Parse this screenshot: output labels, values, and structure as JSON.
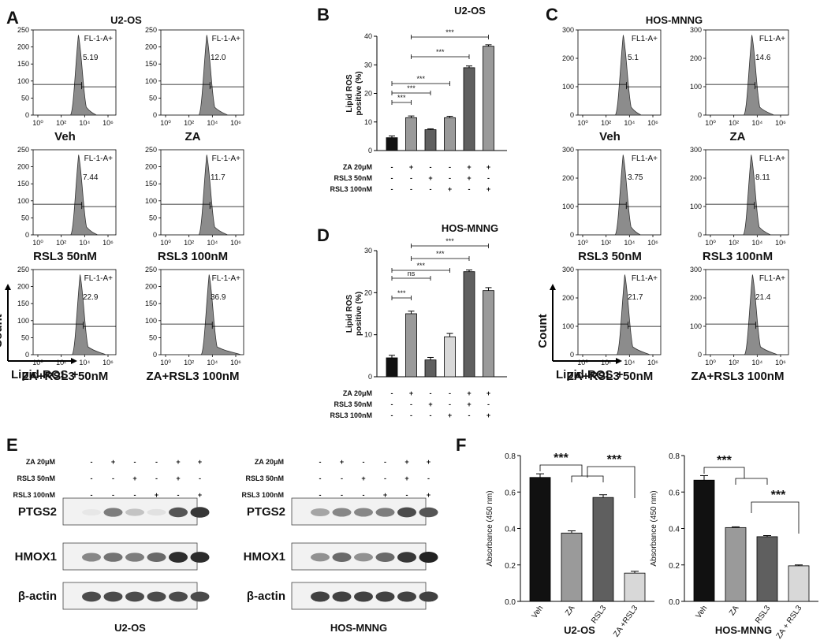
{
  "panel_labels": {
    "A": "A",
    "B": "B",
    "C": "C",
    "D": "D",
    "E": "E",
    "F": "F"
  },
  "colors": {
    "black": "#111111",
    "bar_dark": "#5f5f5f",
    "bar_mid": "#9a9a9a",
    "bar_light": "#d8d8d8",
    "histogram": "#8c8c8c"
  },
  "chart_data": [
    {
      "type": "histogram",
      "id": "A",
      "title": "U2-OS",
      "ylabel": "Count",
      "xlabel": "Lipid ROS +",
      "ylim": [
        0,
        250
      ],
      "yticks": [
        "0",
        "50",
        "100",
        "150",
        "200",
        "250"
      ],
      "xticks": [
        "10⁰",
        "10²",
        "10⁴",
        "10⁶"
      ],
      "gate_label": "FL-1-A+",
      "subplots": [
        {
          "condition": "Veh",
          "percent": "5.19"
        },
        {
          "condition": "ZA",
          "percent": "12.0"
        },
        {
          "condition": "RSL3 50nM",
          "percent": "7.44"
        },
        {
          "condition": "RSL3 100nM",
          "percent": "11.7"
        },
        {
          "condition": "ZA+RSL3 50nM",
          "percent": "22.9"
        },
        {
          "condition": "ZA+RSL3 100nM",
          "percent": "36.9"
        }
      ]
    },
    {
      "type": "bar",
      "id": "B",
      "title": "U2-OS",
      "ylabel": "Lipid ROS positive (%)",
      "ylim": [
        0,
        40
      ],
      "yticks": [
        "0",
        "10",
        "20",
        "30",
        "40"
      ],
      "values": [
        4.5,
        11.5,
        7.3,
        11.5,
        29,
        36.5
      ],
      "errors": [
        0.6,
        0.6,
        0.3,
        0.5,
        0.6,
        0.5
      ],
      "bar_colors": [
        "#111111",
        "#9a9a9a",
        "#5f5f5f",
        "#9a9a9a",
        "#5f5f5f",
        "#9a9a9a"
      ],
      "rows": [
        {
          "label": "ZA 20μM",
          "marks": [
            "-",
            "+",
            "-",
            "-",
            "+",
            "+"
          ]
        },
        {
          "label": "RSL3 50nM",
          "marks": [
            "-",
            "-",
            "+",
            "-",
            "+",
            "-"
          ]
        },
        {
          "label": "RSL3 100nM",
          "marks": [
            "-",
            "-",
            "-",
            "+",
            "-",
            "+"
          ]
        }
      ],
      "significance": [
        {
          "from": 0,
          "to": 1,
          "label": "***"
        },
        {
          "from": 0,
          "to": 2,
          "label": "***"
        },
        {
          "from": 0,
          "to": 3,
          "label": "***"
        },
        {
          "from": 1,
          "to": 4,
          "label": "***"
        },
        {
          "from": 1,
          "to": 5,
          "label": "***"
        }
      ]
    },
    {
      "type": "histogram",
      "id": "C",
      "title": "HOS-MNNG",
      "ylabel": "Count",
      "xlabel": "Lipid ROS +",
      "ylim": [
        0,
        300
      ],
      "yticks": [
        "0",
        "100",
        "200",
        "300"
      ],
      "xticks": [
        "10⁰",
        "10²",
        "10⁴",
        "10⁶"
      ],
      "gate_label": "FL1-A+",
      "subplots": [
        {
          "condition": "Veh",
          "percent": "5.1"
        },
        {
          "condition": "ZA",
          "percent": "14.6"
        },
        {
          "condition": "RSL3 50nM",
          "percent": "3.75"
        },
        {
          "condition": "RSL3 100nM",
          "percent": "8.11"
        },
        {
          "condition": "ZA+RSL3 50nM",
          "percent": "21.7"
        },
        {
          "condition": "ZA+RSL3 100nM",
          "percent": "21.4"
        }
      ]
    },
    {
      "type": "bar",
      "id": "D",
      "title": "HOS-MNNG",
      "ylabel": "Lipid ROS positive (%)",
      "ylim": [
        0,
        30
      ],
      "yticks": [
        "0",
        "10",
        "20",
        "30"
      ],
      "values": [
        4.5,
        15,
        4,
        9.5,
        25,
        20.5
      ],
      "errors": [
        0.6,
        0.6,
        0.6,
        0.8,
        0.4,
        0.7
      ],
      "bar_colors": [
        "#111111",
        "#9a9a9a",
        "#5f5f5f",
        "#d8d8d8",
        "#5f5f5f",
        "#9a9a9a"
      ],
      "rows": [
        {
          "label": "ZA 20μM",
          "marks": [
            "-",
            "+",
            "-",
            "-",
            "+",
            "+"
          ]
        },
        {
          "label": "RSL3 50nM",
          "marks": [
            "-",
            "-",
            "+",
            "-",
            "+",
            "-"
          ]
        },
        {
          "label": "RSL3 100nM",
          "marks": [
            "-",
            "-",
            "-",
            "+",
            "-",
            "+"
          ]
        }
      ],
      "significance": [
        {
          "from": 0,
          "to": 1,
          "label": "***"
        },
        {
          "from": 0,
          "to": 2,
          "label": "ns"
        },
        {
          "from": 0,
          "to": 3,
          "label": "***"
        },
        {
          "from": 1,
          "to": 4,
          "label": "***"
        },
        {
          "from": 1,
          "to": 5,
          "label": "***"
        }
      ]
    },
    {
      "type": "bar",
      "id": "F1",
      "title": "U2-OS",
      "ylabel": "Absorbance (450 nm)",
      "ylim": [
        0,
        0.8
      ],
      "yticks": [
        "0.0",
        "0.2",
        "0.4",
        "0.6",
        "0.8"
      ],
      "categories": [
        "Veh",
        "ZA",
        "RSL3",
        "ZA +RSL3"
      ],
      "values": [
        0.68,
        0.375,
        0.57,
        0.155
      ],
      "errors": [
        0.02,
        0.012,
        0.015,
        0.01
      ],
      "bar_colors": [
        "#111111",
        "#9a9a9a",
        "#5f5f5f",
        "#d8d8d8"
      ],
      "significance": [
        {
          "from": 0,
          "to": [
            1,
            2
          ],
          "label": "***"
        },
        {
          "from": [
            1,
            2
          ],
          "to": 3,
          "label": "***"
        }
      ]
    },
    {
      "type": "bar",
      "id": "F2",
      "title": "HOS-MNNG",
      "ylabel": "Absorbance (450 nm)",
      "ylim": [
        0,
        0.8
      ],
      "yticks": [
        "0.0",
        "0.2",
        "0.4",
        "0.6",
        "0.8"
      ],
      "categories": [
        "Veh",
        "ZA",
        "RSL3",
        "ZA + RSL3"
      ],
      "values": [
        0.665,
        0.405,
        0.355,
        0.195
      ],
      "errors": [
        0.025,
        0.004,
        0.006,
        0.005
      ],
      "bar_colors": [
        "#111111",
        "#9a9a9a",
        "#5f5f5f",
        "#d8d8d8"
      ],
      "significance": [
        {
          "from": 0,
          "to": [
            1,
            2
          ],
          "label": "***"
        },
        {
          "from": [
            1,
            2
          ],
          "to": 3,
          "label": "***"
        }
      ]
    }
  ],
  "western_blot": {
    "panel": "E",
    "rows": [
      {
        "label": "ZA 20μM",
        "marks": [
          "-",
          "+",
          "-",
          "-",
          "+",
          "+"
        ]
      },
      {
        "label": "RSL3 50nM",
        "marks": [
          "-",
          "-",
          "+",
          "-",
          "+",
          "-"
        ]
      },
      {
        "label": "RSL3 100nM",
        "marks": [
          "-",
          "-",
          "-",
          "+",
          "-",
          "+"
        ]
      }
    ],
    "cell_lines": [
      {
        "name": "U2-OS",
        "bands": [
          {
            "protein": "PTGS2",
            "intensity": [
              0.02,
              0.55,
              0.2,
              0.05,
              0.75,
              0.9
            ]
          },
          {
            "protein": "HMOX1",
            "intensity": [
              0.5,
              0.6,
              0.55,
              0.65,
              0.95,
              0.95
            ]
          },
          {
            "protein": "β-actin",
            "intensity": [
              0.8,
              0.8,
              0.8,
              0.8,
              0.8,
              0.8
            ]
          }
        ]
      },
      {
        "name": "HOS-MNNG",
        "bands": [
          {
            "protein": "PTGS2",
            "intensity": [
              0.35,
              0.5,
              0.5,
              0.55,
              0.8,
              0.75
            ]
          },
          {
            "protein": "HMOX1",
            "intensity": [
              0.45,
              0.65,
              0.45,
              0.65,
              0.9,
              1.0
            ]
          },
          {
            "protein": "β-actin",
            "intensity": [
              0.85,
              0.85,
              0.85,
              0.85,
              0.85,
              0.85
            ]
          }
        ]
      }
    ]
  }
}
